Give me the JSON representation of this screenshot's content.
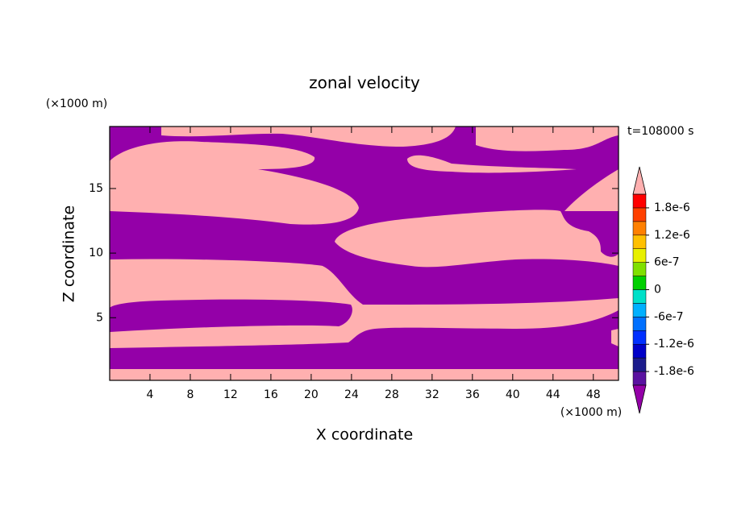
{
  "chart_data": {
    "type": "contour",
    "title": "zonal velocity",
    "x_label": "X coordinate",
    "y_label": "Z coordinate",
    "x_unit": "(×1000 m)",
    "y_unit": "(×1000 m)",
    "annotation": "t=108000 s",
    "xlim": [
      0,
      50.5
    ],
    "ylim": [
      0.15,
      19.8
    ],
    "xticks": [
      4,
      8,
      12,
      16,
      20,
      24,
      28,
      32,
      36,
      40,
      44,
      48
    ],
    "yticks": [
      5,
      10,
      15
    ],
    "colorbar": {
      "levels": [
        -2.1e-06,
        -1.8e-06,
        -1.5e-06,
        -1.2e-06,
        -9e-07,
        -6e-07,
        -3e-07,
        0,
        3e-07,
        6e-07,
        9e-07,
        1.2e-06,
        1.5e-06,
        1.8e-06,
        2.1e-06
      ],
      "colors": [
        "#5a12a0",
        "#1c1c8c",
        "#0000c8",
        "#0030ff",
        "#0070ff",
        "#00b0ff",
        "#00e0c8",
        "#00d000",
        "#80e000",
        "#e8f000",
        "#ffc000",
        "#ff8000",
        "#ff4000",
        "#ff0000"
      ],
      "under_color": "#9400a8",
      "over_color": "#ffb0b0",
      "ticks": [
        {
          "value": 1.8e-06,
          "label": "1.8e-6"
        },
        {
          "value": 1.2e-06,
          "label": "1.2e-6"
        },
        {
          "value": 6e-07,
          "label": "6e-7"
        },
        0,
        {
          "value": -6e-07,
          "label": "-6e-7"
        },
        {
          "value": -1.2e-06,
          "label": "-1.2e-6"
        },
        {
          "value": -1.8e-06,
          "label": "-1.8e-6"
        }
      ]
    }
  }
}
